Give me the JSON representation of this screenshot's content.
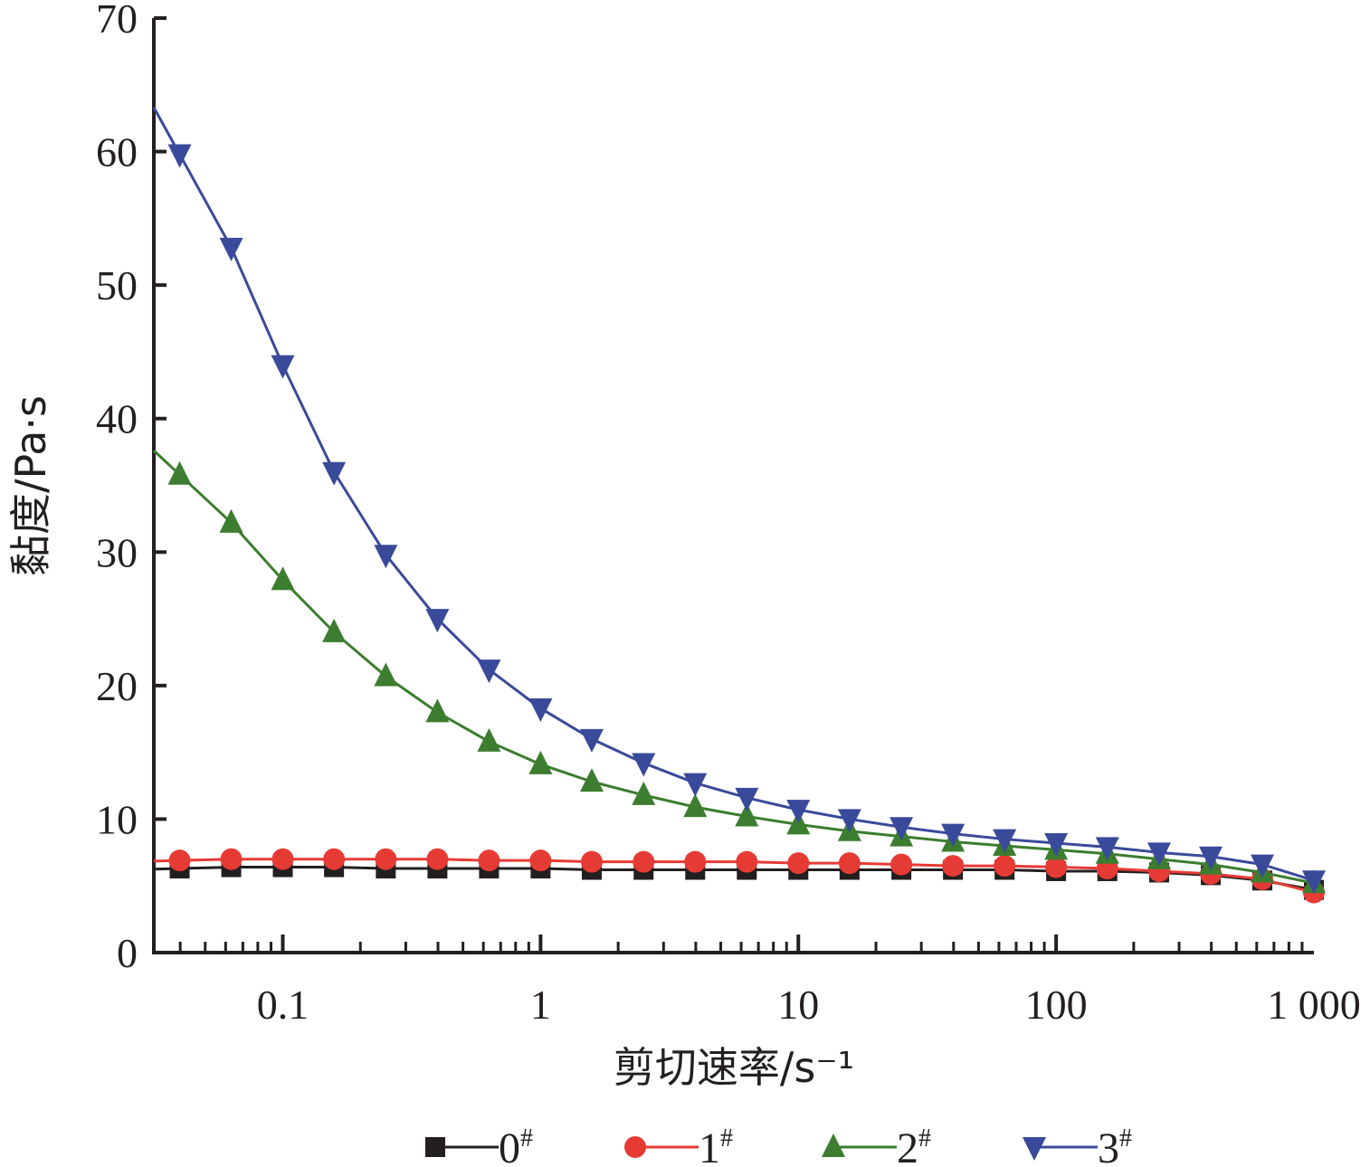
{
  "chart_data": {
    "type": "line",
    "xscale": "log",
    "xlim": [
      0.0316,
      1000
    ],
    "ylim": [
      0,
      70
    ],
    "xlabel": "剪切速率/s⁻¹",
    "ylabel": "黏度/Pa·s",
    "xticks": [
      {
        "value": 0.1,
        "label": "0.1"
      },
      {
        "value": 1,
        "label": "1"
      },
      {
        "value": 10,
        "label": "10"
      },
      {
        "value": 100,
        "label": "100"
      },
      {
        "value": 1000,
        "label": "1 000"
      }
    ],
    "yticks": [
      {
        "value": 0,
        "label": "0"
      },
      {
        "value": 10,
        "label": "10"
      },
      {
        "value": 20,
        "label": "20"
      },
      {
        "value": 30,
        "label": "30"
      },
      {
        "value": 40,
        "label": "40"
      },
      {
        "value": 50,
        "label": "50"
      },
      {
        "value": 60,
        "label": "60"
      },
      {
        "value": 70,
        "label": "70"
      }
    ],
    "grid": false,
    "legend_position": "bottom",
    "x": [
      0.0398,
      0.0631,
      0.1,
      0.158,
      0.251,
      0.398,
      0.631,
      1,
      1.58,
      2.51,
      3.98,
      6.31,
      10,
      15.8,
      25.1,
      39.8,
      63.1,
      100,
      158,
      251,
      398,
      631,
      1000
    ],
    "series": [
      {
        "name": "0#",
        "label": "0",
        "sup": "#",
        "color": "#231f20",
        "marker": "square",
        "values": [
          6.3,
          6.4,
          6.4,
          6.4,
          6.3,
          6.3,
          6.3,
          6.3,
          6.2,
          6.2,
          6.2,
          6.2,
          6.2,
          6.2,
          6.2,
          6.2,
          6.2,
          6.1,
          6.1,
          6.0,
          5.8,
          5.4,
          4.7
        ]
      },
      {
        "name": "1#",
        "label": "1",
        "sup": "#",
        "color": "#e63b35",
        "marker": "circle",
        "values": [
          6.9,
          7.0,
          7.0,
          7.0,
          7.0,
          7.0,
          6.9,
          6.9,
          6.8,
          6.8,
          6.8,
          6.8,
          6.7,
          6.7,
          6.6,
          6.5,
          6.5,
          6.4,
          6.3,
          6.1,
          5.9,
          5.5,
          4.5
        ]
      },
      {
        "name": "2#",
        "label": "2",
        "sup": "#",
        "color": "#3c7d2f",
        "marker": "triangle-up",
        "values": [
          35.8,
          32.2,
          27.9,
          24.0,
          20.7,
          18.0,
          15.8,
          14.1,
          12.8,
          11.8,
          10.9,
          10.2,
          9.6,
          9.1,
          8.7,
          8.3,
          8.0,
          7.7,
          7.4,
          7.0,
          6.6,
          6.0,
          5.2
        ]
      },
      {
        "name": "3#",
        "label": "3",
        "sup": "#",
        "color": "#3a4a9a",
        "marker": "triangle-down",
        "values": [
          59.8,
          52.8,
          44.0,
          36.0,
          29.8,
          25.0,
          21.2,
          18.3,
          16.0,
          14.2,
          12.7,
          11.6,
          10.7,
          10.0,
          9.4,
          8.9,
          8.5,
          8.2,
          7.9,
          7.5,
          7.2,
          6.6,
          5.4
        ]
      }
    ]
  }
}
